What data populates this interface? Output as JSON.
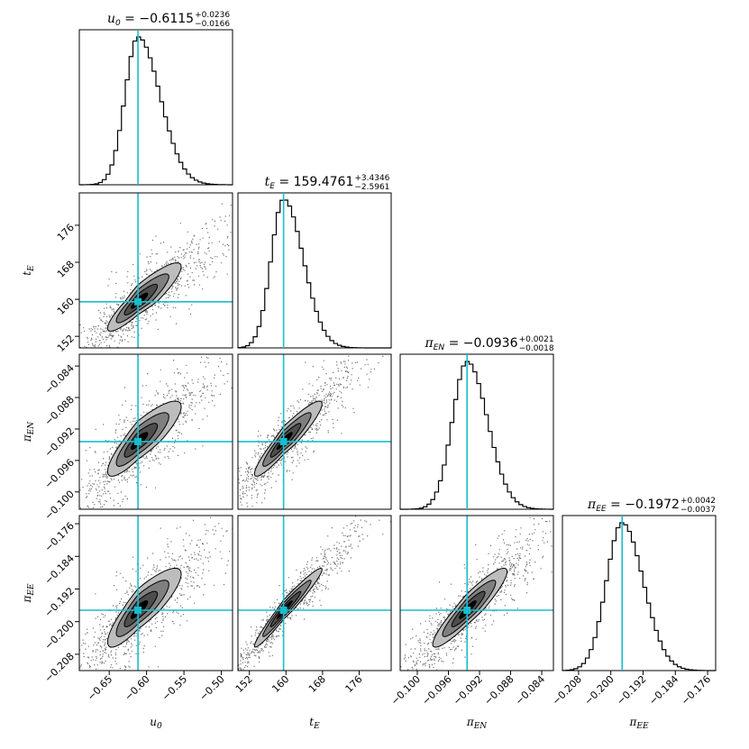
{
  "chart_data": {
    "type": "corner",
    "truth_color": "#17becf",
    "parameters": [
      {
        "key": "u0",
        "symbol": "u",
        "sub": "0",
        "value": -0.6115,
        "title_value": "−0.6115",
        "plus": "+0.0236",
        "minus": "−0.0166",
        "sigma_plus": 0.0236,
        "sigma_minus": 0.0166,
        "range": [
          -0.69,
          -0.485
        ],
        "ticks": [
          -0.65,
          -0.6,
          -0.55,
          -0.5
        ],
        "tick_labels": [
          "−0.65",
          "−0.60",
          "−0.55",
          "−0.50"
        ]
      },
      {
        "key": "tE",
        "symbol": "t",
        "sub": "E",
        "value": 159.4761,
        "title_value": "159.4761",
        "plus": "+3.4346",
        "minus": "−2.5961",
        "sigma_plus": 3.4346,
        "sigma_minus": 2.5961,
        "range": [
          149.5,
          183.0
        ],
        "ticks": [
          152,
          160,
          168,
          176
        ],
        "tick_labels": [
          "152",
          "160",
          "168",
          "176"
        ]
      },
      {
        "key": "piEN",
        "symbol": "π",
        "sub": "EN",
        "value": -0.0936,
        "title_value": "−0.0936",
        "plus": "+0.0021",
        "minus": "−0.0018",
        "sigma_plus": 0.0021,
        "sigma_minus": 0.0018,
        "range": [
          -0.1022,
          -0.0825
        ],
        "ticks": [
          -0.1,
          -0.096,
          -0.092,
          -0.088,
          -0.084
        ],
        "tick_labels": [
          "−0.100",
          "−0.096",
          "−0.092",
          "−0.088",
          "−0.084"
        ]
      },
      {
        "key": "piEE",
        "symbol": "π",
        "sub": "EE",
        "value": -0.1972,
        "title_value": "−0.1972",
        "plus": "+0.0042",
        "minus": "−0.0037",
        "sigma_plus": 0.0042,
        "sigma_minus": 0.0037,
        "range": [
          -0.212,
          -0.174
        ],
        "ticks": [
          -0.208,
          -0.2,
          -0.192,
          -0.184,
          -0.176
        ],
        "tick_labels": [
          "−0.208",
          "−0.200",
          "−0.192",
          "−0.184",
          "−0.176"
        ]
      }
    ],
    "correlations": {
      "1-0": 0.9,
      "2-0": 0.86,
      "2-1": 0.93,
      "3-0": 0.86,
      "3-1": 0.97,
      "3-2": 0.92
    },
    "contour_levels": [
      "0.5 sigma",
      "1 sigma",
      "1.5 sigma",
      "2 sigma"
    ],
    "contour_fills": [
      "#000000",
      "#4d4d4d",
      "#7f7f7f",
      "#bdbdbd"
    ]
  }
}
